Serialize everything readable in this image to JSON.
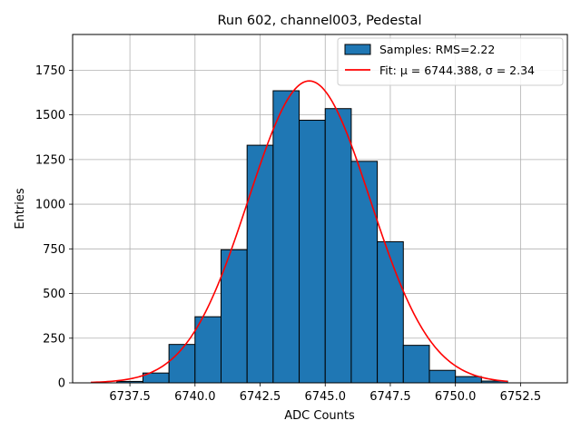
{
  "chart_data": {
    "type": "bar",
    "title": "Run 602, channel003, Pedestal",
    "xlabel": "ADC Counts",
    "ylabel": "Entries",
    "xlim": [
      6735.3,
      6754.3
    ],
    "ylim": [
      0,
      1950
    ],
    "grid": true,
    "legend_position": "top-right",
    "xticks": [
      6737.5,
      6740.0,
      6742.5,
      6745.0,
      6747.5,
      6750.0,
      6752.5
    ],
    "xtick_labels": [
      "6737.5",
      "6740.0",
      "6742.5",
      "6745.0",
      "6747.5",
      "6750.0",
      "6752.5"
    ],
    "yticks": [
      0,
      250,
      500,
      750,
      1000,
      1250,
      1500,
      1750
    ],
    "ytick_labels": [
      "0",
      "250",
      "500",
      "750",
      "1000",
      "1250",
      "1500",
      "1750"
    ],
    "bin_edges": [
      6737,
      6738,
      6739,
      6740,
      6741,
      6742,
      6743,
      6744,
      6745,
      6746,
      6747,
      6748,
      6749,
      6750,
      6751,
      6752
    ],
    "values": [
      8,
      55,
      215,
      370,
      745,
      1330,
      1635,
      1470,
      1535,
      1240,
      790,
      210,
      70,
      35,
      10
    ],
    "fit": {
      "mu": 6744.388,
      "sigma": 2.34,
      "peak": 1690,
      "x_range": [
        6736,
        6752
      ]
    },
    "legend": [
      {
        "label": "Samples: RMS=2.22"
      },
      {
        "label": "Fit: μ = 6744.388, σ = 2.34"
      }
    ],
    "colors": {
      "bar": "#1f77b4",
      "bar_edge": "#000000",
      "fit": "#ff0000",
      "grid": "#b0b0b0"
    }
  }
}
